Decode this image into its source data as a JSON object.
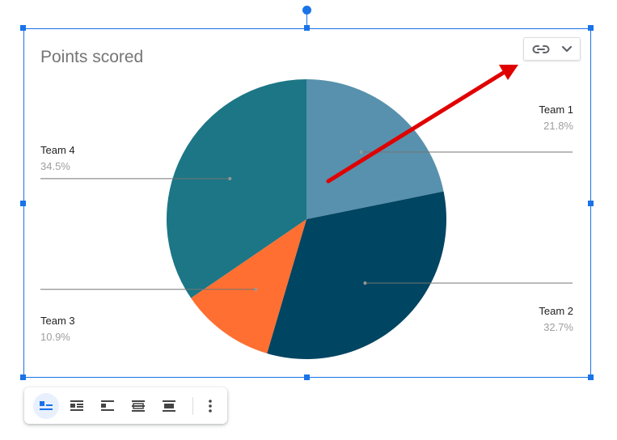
{
  "chart_data": {
    "type": "pie",
    "title": "Points scored",
    "slices": [
      {
        "label": "Team 1",
        "value": 21.8,
        "pct_label": "21.8%",
        "color": "#5891ad"
      },
      {
        "label": "Team 2",
        "value": 32.7,
        "pct_label": "32.7%",
        "color": "#004561"
      },
      {
        "label": "Team 3",
        "value": 10.9,
        "pct_label": "10.9%",
        "color": "#ff6f31"
      },
      {
        "label": "Team 4",
        "value": 34.5,
        "pct_label": "34.5%",
        "color": "#1c7685"
      }
    ],
    "start_angle": "12 o'clock",
    "direction": "clockwise",
    "legend": "labeled leader lines"
  },
  "colors": {
    "selection": "#1a73e8",
    "annotation_arrow": "#e00000",
    "active_button_bg": "#e8f0fe"
  },
  "link_control": {
    "icons": [
      "link-icon",
      "chevron-down-icon"
    ]
  },
  "toolbar": {
    "buttons": [
      {
        "name": "wrap-inline",
        "icon": "wrap-inline-icon",
        "active": true
      },
      {
        "name": "wrap-text",
        "icon": "wrap-text-icon",
        "active": false
      },
      {
        "name": "break-text",
        "icon": "break-text-icon",
        "active": false
      },
      {
        "name": "behind-text",
        "icon": "behind-text-icon",
        "active": false
      },
      {
        "name": "in-front-of-text",
        "icon": "in-front-of-text-icon",
        "active": false
      },
      {
        "name": "more-options",
        "icon": "more-vert-icon",
        "active": false
      }
    ]
  }
}
